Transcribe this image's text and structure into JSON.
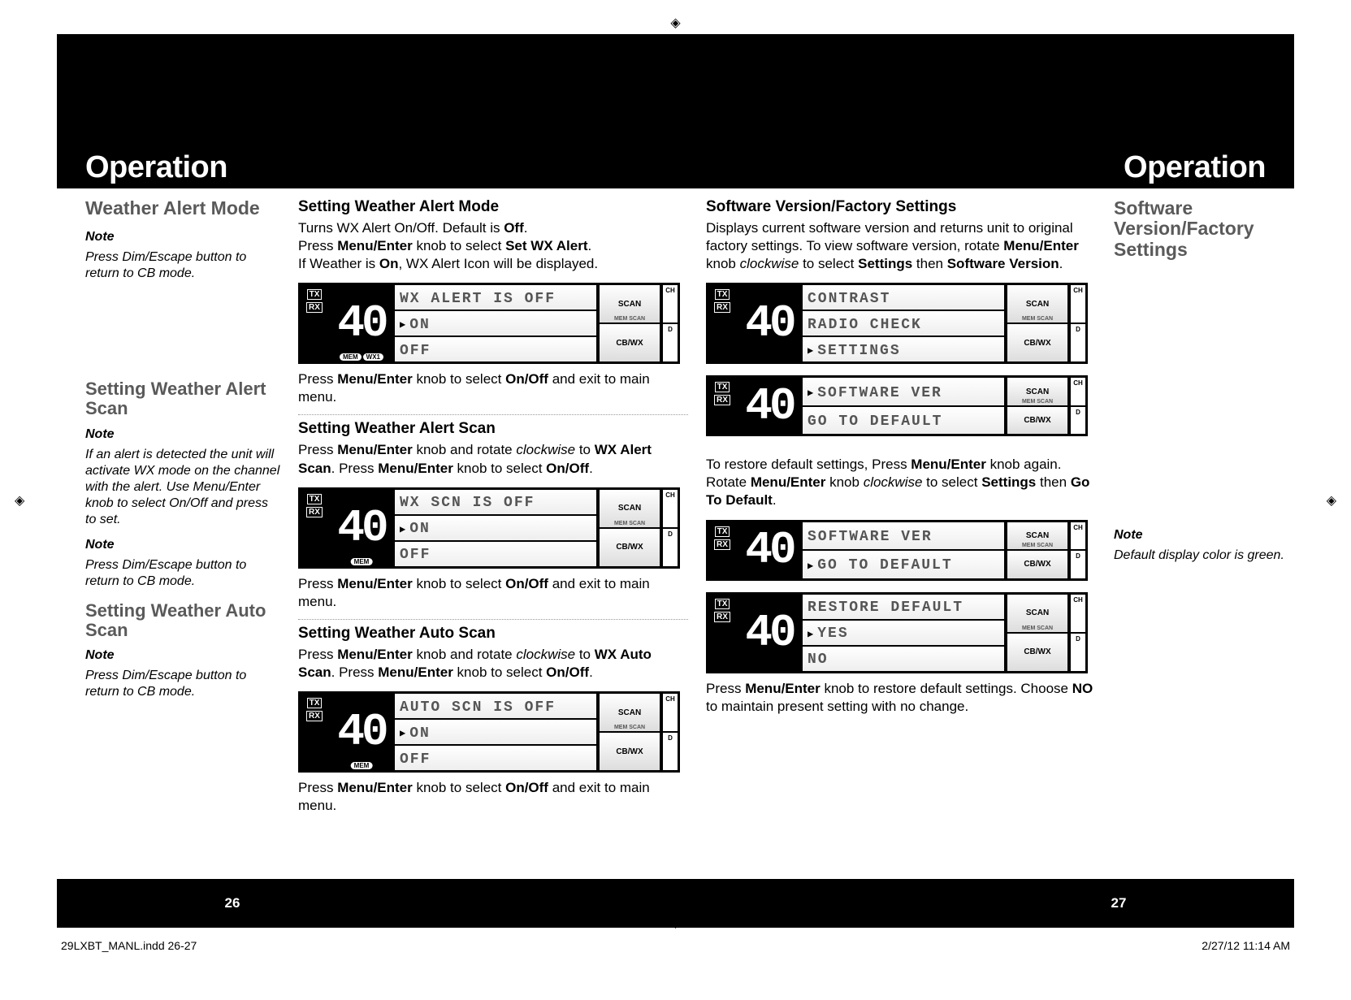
{
  "crop_glyph": "◈",
  "page_title_left": "Operation",
  "page_title_right": "Operation",
  "pg_left": "26",
  "pg_right": "27",
  "footer_left": "29LXBT_MANL.indd   26-27",
  "footer_right": "2/27/12   11:14 AM",
  "left_col": {
    "h1": "Weather Alert Mode",
    "n1_label": "Note",
    "n1": "Press Dim/Escape button to return to CB mode.",
    "h2": "Setting Weather Alert Scan",
    "n2_label": "Note",
    "n2": "If an alert is detected the unit will activate WX mode on the channel with the alert. Use Menu/Enter knob to select On/Off and press to set.",
    "n3_label": "Note",
    "n3": "Press Dim/Escape button to return to CB mode.",
    "h3": "Setting Weather Auto Scan",
    "n4_label": "Note",
    "n4": "Press Dim/Escape button to return to CB mode."
  },
  "mid_col": {
    "s1_h": "Setting Weather Alert Mode",
    "s1_p1": "Turns WX Alert On/Off.  Default is <b>Off</b>.<br>Press <b>Menu/Enter</b> knob to select <b>Set WX Alert</b>.<br>If Weather is <b>On</b>, WX Alert Icon will be displayed.",
    "s1_p2": "Press <b>Menu/Enter</b> knob to select <b>On/Off</b> and exit to main menu.",
    "s2_h": "Setting Weather Alert Scan",
    "s2_p1": "Press <b>Menu/Enter</b> knob and rotate <i>clockwise</i> to <b>WX Alert Scan</b>. Press <b>Menu/Enter</b> knob to select <b>On/Off</b>.",
    "s2_p2": "Press <b>Menu/Enter</b> knob to select <b>On/Off</b> and exit to main menu.",
    "s3_h": "Setting Weather Auto Scan",
    "s3_p1": "Press <b>Menu/Enter</b> knob and rotate <i>clockwise</i> to <b>WX Auto Scan</b>. Press <b>Menu/Enter</b> knob to select <b>On/Off</b>.",
    "s3_p2": "Press <b>Menu/Enter</b> knob to select <b>On/Off</b> and exit to main menu."
  },
  "right_col": {
    "s1_h": "Software Version/Factory Settings",
    "s1_p1": "Displays current software version and returns unit to original factory settings. To view software version, rotate <b>Menu/Enter</b> knob <i>clockwise</i> to select <b>Settings</b> then <b>Software Version</b>.",
    "s1_p2": "To restore default settings, Press <b>Menu/Enter</b> knob again. Rotate <b>Menu/Enter</b> knob <i>clockwise</i> to select <b>Settings</b> then <b>Go To Default</b>.",
    "s1_p3": "Press <b>Menu/Enter</b> knob to restore default settings. Choose <b>NO</b> to maintain present setting with no change."
  },
  "far_col": {
    "h1": "Software Version/Factory Settings",
    "n1_label": "Note",
    "n1": "Default display color is green."
  },
  "lcd": {
    "ch": "40",
    "tx": "TX",
    "rx": "RX",
    "scan": "SCAN",
    "mem_scan": "MEM SCAN",
    "cbwx": "CB/WX",
    "mem": "MEM",
    "wx1": "WX1",
    "side_ch": "CH",
    "side_d": "D",
    "disp1": {
      "l1": "WX ALERT IS OFF",
      "l2": "ON",
      "l3": "OFF",
      "sel": 2,
      "chips": [
        "MEM",
        "WX1"
      ]
    },
    "disp2": {
      "l1": "WX SCN IS OFF",
      "l2": "ON",
      "l3": "OFF",
      "sel": 2,
      "chips": [
        "MEM"
      ]
    },
    "disp3": {
      "l1": "AUTO SCN IS OFF",
      "l2": "ON",
      "l3": "OFF",
      "sel": 2,
      "chips": [
        "MEM"
      ]
    },
    "disp4": {
      "l1": "CONTRAST",
      "l2": "RADIO CHECK",
      "l3": "SETTINGS",
      "sel": 3
    },
    "disp5": {
      "l1": "SOFTWARE VER",
      "l2": "GO TO DEFAULT",
      "sel": 1,
      "rows": 2
    },
    "disp6": {
      "l1": "SOFTWARE VER",
      "l2": "GO TO DEFAULT",
      "sel": 2,
      "rows": 2
    },
    "disp7": {
      "l1": "RESTORE DEFAULT",
      "l2": "YES",
      "l3": "NO",
      "sel": 2
    }
  }
}
